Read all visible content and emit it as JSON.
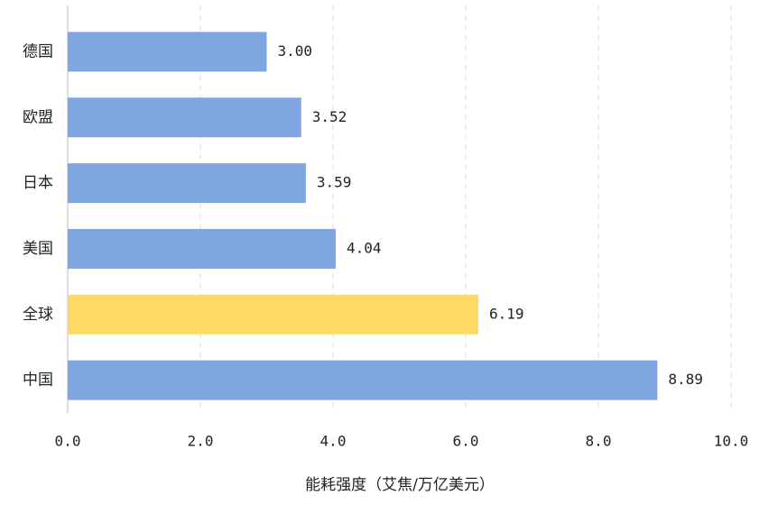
{
  "chart_data": {
    "type": "barh",
    "categories": [
      "德国",
      "欧盟",
      "日本",
      "美国",
      "全球",
      "中国"
    ],
    "values": [
      3.0,
      3.52,
      3.59,
      4.04,
      6.19,
      8.89
    ],
    "value_labels": [
      "3.00",
      "3.52",
      "3.59",
      "4.04",
      "6.19",
      "8.89"
    ],
    "colors": [
      "#7fa6e0",
      "#7fa6e0",
      "#7fa6e0",
      "#7fa6e0",
      "#ffd966",
      "#7fa6e0"
    ],
    "xlabel": "能耗强度（艾焦/万亿美元）",
    "xlim": [
      0,
      10
    ],
    "xticks": [
      {
        "value": 0,
        "label": "0.0"
      },
      {
        "value": 2,
        "label": "2.0"
      },
      {
        "value": 4,
        "label": "4.0"
      },
      {
        "value": 6,
        "label": "6.0"
      },
      {
        "value": 8,
        "label": "8.0"
      },
      {
        "value": 10,
        "label": "10.0"
      }
    ],
    "grid": true
  }
}
